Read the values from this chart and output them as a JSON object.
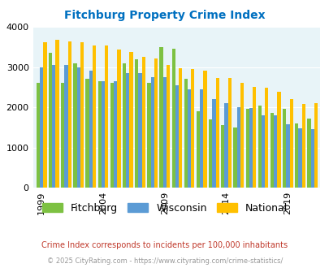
{
  "title": "Fitchburg Property Crime Index",
  "years": [
    1999,
    2000,
    2001,
    2002,
    2003,
    2004,
    2005,
    2006,
    2007,
    2008,
    2009,
    2010,
    2011,
    2012,
    2013,
    2014,
    2015,
    2016,
    2017,
    2018,
    2019,
    2020,
    2021
  ],
  "fitchburg": [
    2600,
    3350,
    2600,
    3100,
    2700,
    2650,
    2600,
    3100,
    3200,
    2600,
    3500,
    3450,
    2700,
    1900,
    1700,
    1550,
    1500,
    1950,
    2050,
    1850,
    1950,
    1600,
    1720
  ],
  "wisconsin": [
    3000,
    3050,
    3050,
    3000,
    2900,
    2650,
    2650,
    2850,
    2850,
    2750,
    2750,
    2550,
    2450,
    2450,
    2200,
    2100,
    2000,
    1980,
    1800,
    1800,
    1570,
    1470,
    1460
  ],
  "national": [
    3620,
    3680,
    3630,
    3610,
    3530,
    3530,
    3430,
    3370,
    3260,
    3220,
    3050,
    2970,
    2940,
    2900,
    2720,
    2730,
    2600,
    2510,
    2490,
    2380,
    2210,
    2090,
    2100
  ],
  "fitchburg_color": "#7dc142",
  "wisconsin_color": "#5b9bd5",
  "national_color": "#ffc000",
  "bg_color": "#e8f4f8",
  "title_color": "#0070c0",
  "ylim": [
    0,
    4000
  ],
  "yticks": [
    0,
    1000,
    2000,
    3000,
    4000
  ],
  "tick_years": [
    1999,
    2004,
    2009,
    2014,
    2019
  ],
  "legend_labels": [
    "Fitchburg",
    "Wisconsin",
    "National"
  ],
  "footnote1": "Crime Index corresponds to incidents per 100,000 inhabitants",
  "footnote2": "© 2025 CityRating.com - https://www.cityrating.com/crime-statistics/",
  "footnote1_color": "#c0392b",
  "footnote2_color": "#999999"
}
